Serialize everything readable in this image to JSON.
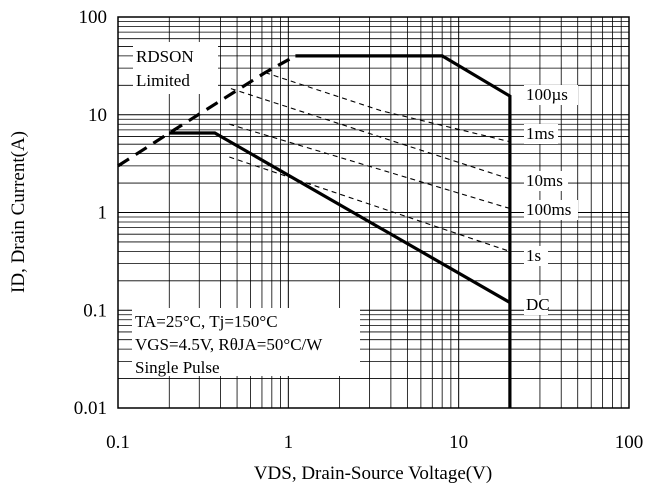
{
  "chart_data": {
    "type": "line",
    "xscale": "log",
    "yscale": "log",
    "xlim": [
      0.1,
      100
    ],
    "ylim": [
      0.01,
      100
    ],
    "grid": true,
    "xlabel": "VDS, Drain-Source Voltage(V)",
    "ylabel": "ID, Drain Current(A)",
    "x_ticks": [
      0.1,
      1,
      10,
      100
    ],
    "x_tick_labels": [
      "0.1",
      "1",
      "10",
      "100"
    ],
    "y_ticks": [
      0.01,
      0.1,
      1,
      10,
      100
    ],
    "y_tick_labels": [
      "0.01",
      "0.1",
      "1",
      "10",
      "100"
    ],
    "annotations": {
      "rdson_line1": "RDSON",
      "rdson_line2": "Limited",
      "cond_line1": "TA=25°C, Tj=150°C",
      "cond_line2": "VGS=4.5V, RθJA=50°C/W",
      "cond_line3": "Single Pulse"
    },
    "series": [
      {
        "name": "RDSON Limited",
        "style": "thick-dashed",
        "x": [
          0.1,
          0.2,
          0.73,
          1.1
        ],
        "y": [
          3.0,
          6.5,
          27,
          40
        ]
      },
      {
        "name": "100µs",
        "style": "thick-solid",
        "x": [
          1.1,
          8.0,
          20,
          20
        ],
        "y": [
          40,
          40,
          15.5,
          0.01
        ]
      },
      {
        "name": "1ms",
        "style": "thin-dashed",
        "x": [
          0.73,
          3.5,
          20
        ],
        "y": [
          27,
          11,
          5.3
        ]
      },
      {
        "name": "10ms",
        "style": "thin-dashed",
        "x": [
          0.46,
          20
        ],
        "y": [
          18.5,
          2.2
        ]
      },
      {
        "name": "100ms",
        "style": "thin-dashed",
        "x": [
          0.45,
          20
        ],
        "y": [
          8.0,
          1.1
        ]
      },
      {
        "name": "1s",
        "style": "thin-dashed",
        "x": [
          0.45,
          20
        ],
        "y": [
          3.7,
          0.4
        ]
      },
      {
        "name": "DC",
        "style": "thick-solid",
        "x": [
          0.2,
          0.37,
          20
        ],
        "y": [
          6.5,
          6.5,
          0.12
        ]
      }
    ],
    "curve_labels": [
      "100µs",
      "1ms",
      "10ms",
      "100ms",
      "1s",
      "DC"
    ]
  }
}
